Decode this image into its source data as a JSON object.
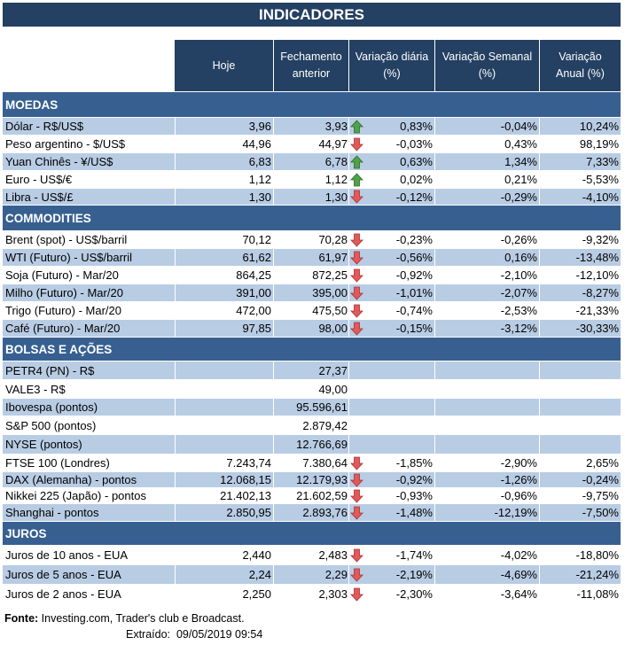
{
  "title": "INDICADORES",
  "columns": [
    "Hoje",
    "Fechamento\nanterior",
    "Variação diária\n(%)",
    "Variação Semanal\n(%)",
    "Variação\nAnual (%)"
  ],
  "colors": {
    "title_bg": "#244062",
    "section_bg": "#376091",
    "row_alt": "#b8cce4",
    "up": "#4ea24a",
    "down": "#e05a5a"
  },
  "sections": [
    {
      "name": "MOEDAS",
      "rows": [
        {
          "label": "Dólar - R$/US$",
          "hoje": "3,96",
          "anterior": "3,93",
          "trend": "up",
          "diaria": "0,83%",
          "semanal": "-0,04%",
          "anual": "10,24%"
        },
        {
          "label": "Peso argentino - $/US$",
          "hoje": "44,96",
          "anterior": "44,97",
          "trend": "down",
          "diaria": "-0,03%",
          "semanal": "0,43%",
          "anual": "98,19%"
        },
        {
          "label": "Yuan Chinês - ¥/US$",
          "hoje": "6,83",
          "anterior": "6,78",
          "trend": "up",
          "diaria": "0,63%",
          "semanal": "1,34%",
          "anual": "7,33%"
        },
        {
          "label": "Euro - US$/€",
          "hoje": "1,12",
          "anterior": "1,12",
          "trend": "up",
          "diaria": "0,02%",
          "semanal": "0,21%",
          "anual": "-5,53%"
        },
        {
          "label": "Libra - US$/£",
          "hoje": "1,30",
          "anterior": "1,30",
          "trend": "down",
          "diaria": "-0,12%",
          "semanal": "-0,29%",
          "anual": "-4,10%"
        }
      ]
    },
    {
      "name": "COMMODITIES",
      "rows": [
        {
          "label": "Brent (spot) - US$/barril",
          "hoje": "70,12",
          "anterior": "70,28",
          "trend": "down",
          "diaria": "-0,23%",
          "semanal": "-0,26%",
          "anual": "-9,32%"
        },
        {
          "label": "WTI (Futuro) - US$/barril",
          "hoje": "61,62",
          "anterior": "61,97",
          "trend": "down",
          "diaria": "-0,56%",
          "semanal": "0,16%",
          "anual": "-13,48%"
        },
        {
          "label": "Soja (Futuro) - Mar/20",
          "hoje": "864,25",
          "anterior": "872,25",
          "trend": "down",
          "diaria": "-0,92%",
          "semanal": "-2,10%",
          "anual": "-12,10%"
        },
        {
          "label": "Milho (Futuro) - Mar/20",
          "hoje": "391,00",
          "anterior": "395,00",
          "trend": "down",
          "diaria": "-1,01%",
          "semanal": "-2,07%",
          "anual": "-8,27%"
        },
        {
          "label": "Trigo (Futuro) - Mar/20",
          "hoje": "472,00",
          "anterior": "475,50",
          "trend": "down",
          "diaria": "-0,74%",
          "semanal": "-2,53%",
          "anual": "-21,33%"
        },
        {
          "label": "Café (Futuro) - Mar/20",
          "hoje": "97,85",
          "anterior": "98,00",
          "trend": "down",
          "diaria": "-0,15%",
          "semanal": "-3,12%",
          "anual": "-30,33%"
        }
      ]
    },
    {
      "name": "BOLSAS E AÇÕES",
      "rows": [
        {
          "label": "PETR4 (PN) - R$",
          "hoje": "",
          "anterior": "27,37",
          "trend": "",
          "diaria": "",
          "semanal": "",
          "anual": ""
        },
        {
          "label": "VALE3 - R$",
          "hoje": "",
          "anterior": "49,00",
          "trend": "",
          "diaria": "",
          "semanal": "",
          "anual": ""
        },
        {
          "label": "Ibovespa (pontos)",
          "hoje": "",
          "anterior": "95.596,61",
          "trend": "",
          "diaria": "",
          "semanal": "",
          "anual": ""
        },
        {
          "label": "S&P 500 (pontos)",
          "hoje": "",
          "anterior": "2.879,42",
          "trend": "",
          "diaria": "",
          "semanal": "",
          "anual": ""
        },
        {
          "label": "NYSE (pontos)",
          "hoje": "",
          "anterior": "12.766,69",
          "trend": "",
          "diaria": "",
          "semanal": "",
          "anual": ""
        },
        {
          "label": "FTSE 100 (Londres)",
          "hoje": "7.243,74",
          "anterior": "7.380,64",
          "trend": "down",
          "diaria": "-1,85%",
          "semanal": "-2,90%",
          "anual": "2,65%"
        },
        {
          "label": "DAX (Alemanha) - pontos",
          "hoje": "12.068,15",
          "anterior": "12.179,93",
          "trend": "down",
          "diaria": "-0,92%",
          "semanal": "-1,26%",
          "anual": "-0,24%"
        },
        {
          "label": "Nikkei 225 (Japão) - pontos",
          "hoje": "21.402,13",
          "anterior": "21.602,59",
          "trend": "down",
          "diaria": "-0,93%",
          "semanal": "-0,96%",
          "anual": "-9,75%"
        },
        {
          "label": "Shanghai - pontos",
          "hoje": "2.850,95",
          "anterior": "2.893,76",
          "trend": "down",
          "diaria": "-1,48%",
          "semanal": "-12,19%",
          "anual": "-7,50%"
        }
      ]
    },
    {
      "name": "JUROS",
      "rows": [
        {
          "label": "Juros de 10 anos - EUA",
          "hoje": "2,440",
          "anterior": "2,483",
          "trend": "down",
          "diaria": "-1,74%",
          "semanal": "-4,02%",
          "anual": "-18,80%"
        },
        {
          "label": "Juros de 5 anos - EUA",
          "hoje": "2,24",
          "anterior": "2,29",
          "trend": "down",
          "diaria": "-2,19%",
          "semanal": "-4,69%",
          "anual": "-21,24%"
        },
        {
          "label": "Juros de 2 anos - EUA",
          "hoje": "2,250",
          "anterior": "2,303",
          "trend": "down",
          "diaria": "-2,30%",
          "semanal": "-3,64%",
          "anual": "-11,08%"
        }
      ]
    }
  ],
  "footer": {
    "source_label": "Fonte:",
    "source_text": " Investing.com, Trader's club e Broadcast.",
    "extracted_label": "Extraído:",
    "extracted_value": "09/05/2019 09:54"
  }
}
